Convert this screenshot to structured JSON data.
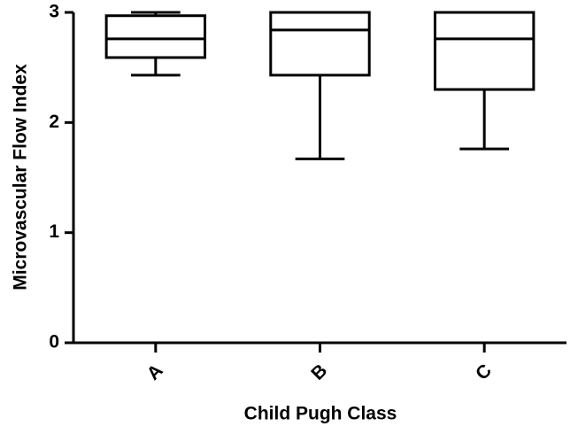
{
  "chart_data": {
    "type": "box",
    "y_label": "Microvascular Flow Index",
    "x_label": "Child Pugh Class",
    "categories": [
      "A",
      "B",
      "C"
    ],
    "boxes": [
      {
        "min": 2.43,
        "q1": 2.59,
        "median": 2.76,
        "q3": 2.97,
        "max": 3.0
      },
      {
        "min": 1.67,
        "q1": 2.43,
        "median": 2.84,
        "q3": 3.0,
        "max": 3.0
      },
      {
        "min": 1.76,
        "q1": 2.3,
        "median": 2.76,
        "q3": 3.0,
        "max": 3.0
      }
    ],
    "color": "#000000",
    "ylim": [
      0,
      3
    ],
    "yticks": [
      0,
      1,
      2,
      3
    ],
    "grid": false
  }
}
